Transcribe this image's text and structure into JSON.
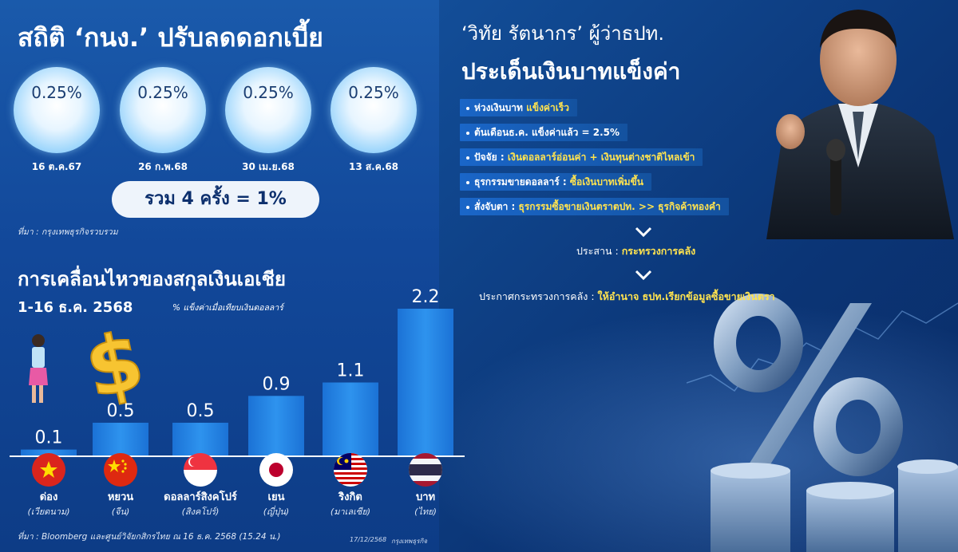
{
  "rate_panel": {
    "title": "สถิติ ‘กนง.’ ปรับลดดอกเบี้ย",
    "cuts": [
      {
        "value": "0.25%",
        "date": "16 ต.ค.67"
      },
      {
        "value": "0.25%",
        "date": "26 ก.พ.68"
      },
      {
        "value": "0.25%",
        "date": "30 เม.ย.68"
      },
      {
        "value": "0.25%",
        "date": "13 ส.ค.68"
      }
    ],
    "total": "รวม 4 ครั้ง = 1%",
    "source": "ที่มา : กรุงเทพธุรกิจรวบรวม"
  },
  "governor_panel": {
    "title_line1": "‘วิทัย รัตนากร’ ผู้ว่าธปท.",
    "title_line2": "ประเด็นเงินบาทแข็งค่า",
    "bullets": [
      {
        "label": "ห่วงเงินบาท ",
        "highlight": "แข็งค่าเร็ว"
      },
      {
        "label": "ต้นเดือนธ.ค. แข็งค่าแล้ว = 2.5%",
        "highlight": ""
      },
      {
        "label": "ปัจจัย : ",
        "highlight": "เงินดอลลาร์อ่อนค่า + เงินทุนต่างชาติไหลเข้า"
      },
      {
        "label": "ธุรกรรมขายดอลลาร์ : ",
        "highlight": "ซื้อเงินบาทเพิ่มขึ้น"
      },
      {
        "label": "สั่งจับตา : ",
        "highlight": "ธุรกรรมซื้อขายเงินตราตปท. >> ธุรกิจค้าทองคำ"
      }
    ],
    "coordinate_label": "ประสาน : ",
    "coordinate_value": "กระทรวงการคลัง",
    "announce_label": "ประกาศกระทรวงการคลัง : ",
    "announce_value": "ให้อำนาจ ธปท.เรียกข้อมูลซื้อขายเงินตรา"
  },
  "currency_panel": {
    "title": "การเคลื่อนไหวของสกุลเงินเอเชีย",
    "subtitle": "1-16 ธ.ค. 2568",
    "unit_note": "% แข็งค่าเมื่อเทียบเงินดอลลาร์",
    "source": "ที่มา : Bloomberg และศูนย์วิจัยกสิกรไทย ณ 16 ธ.ค. 2568 (15.24 น.)",
    "footer_date": "17/12/2568",
    "footer_brand": "กรุงเทพธุรกิจ"
  },
  "chart_data": {
    "type": "bar",
    "title": "การเคลื่อนไหวของสกุลเงินเอเชีย",
    "subtitle": "1-16 ธ.ค. 2568",
    "ylabel": "% แข็งค่าเมื่อเทียบเงินดอลลาร์",
    "categories": [
      "ด่อง",
      "หยวน",
      "ดอลลาร์สิงคโปร์",
      "เยน",
      "ริงกิต",
      "บาท"
    ],
    "category_subtitles": [
      "(เวียดนาม)",
      "(จีน)",
      "(สิงคโปร์)",
      "(ญี่ปุ่น)",
      "(มาเลเซีย)",
      "(ไทย)"
    ],
    "values": [
      0.1,
      0.5,
      0.5,
      0.9,
      1.1,
      2.2
    ],
    "value_labels": [
      "0.1",
      "0.5",
      "0.5",
      "0.9",
      "1.1",
      "2.2"
    ],
    "ylim": [
      0,
      2.2
    ],
    "grid": false,
    "bar_color": "#2e93ee"
  },
  "colors": {
    "highlight": "#ffe34f",
    "bar": "#2e93ee",
    "background": "#114a93"
  }
}
